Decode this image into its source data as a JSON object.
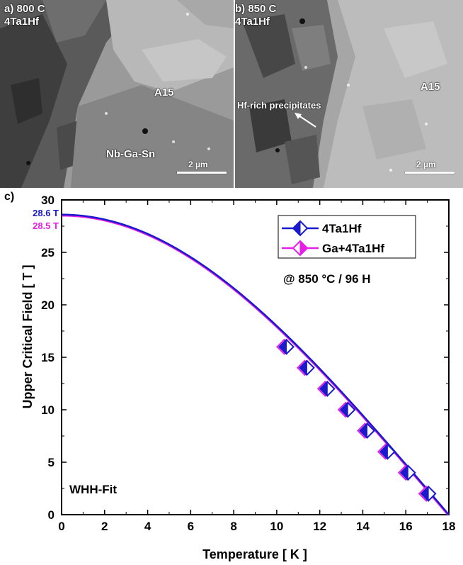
{
  "panel_a": {
    "tag": "a)",
    "temperature": "800 C",
    "alloy": "4Ta1Hf",
    "phase_label": "A15",
    "matrix_label": "Nb-Ga-Sn",
    "scale_label": "2 µm"
  },
  "panel_b": {
    "tag": "b)",
    "temperature": "850 C",
    "alloy": "4Ta1Hf",
    "phase_label": "A15",
    "precipitate_label": "Hf-rich precipitates",
    "scale_label": "2 µm"
  },
  "chart_data": {
    "type": "line",
    "panel_tag": "c)",
    "xlabel": "Temperature [ K ]",
    "ylabel": "Upper Critical Field [ T ]",
    "xlim": [
      0,
      18
    ],
    "ylim": [
      0,
      30
    ],
    "xticks": [
      0,
      2,
      4,
      6,
      8,
      10,
      12,
      14,
      16,
      18
    ],
    "yticks": [
      0,
      5,
      10,
      15,
      20,
      25,
      30
    ],
    "grid": false,
    "legend_position": "top-right",
    "annotation": "@ 850 °C / 96 H",
    "fit_label": "WHH-Fit",
    "series": [
      {
        "name": "4Ta1Hf",
        "color": "#1a1acc",
        "marker": "diamond-half-left",
        "hc2_zero_label": "28.6 T",
        "fit": {
          "bc2_0": 28.6,
          "tc": 18.0
        },
        "points": [
          [
            10.45,
            16
          ],
          [
            11.4,
            14
          ],
          [
            12.35,
            12
          ],
          [
            13.3,
            10
          ],
          [
            14.2,
            8
          ],
          [
            15.15,
            6
          ],
          [
            16.1,
            4
          ],
          [
            17.05,
            2
          ]
        ]
      },
      {
        "name": "Ga+4Ta1Hf",
        "color": "#e61ee6",
        "marker": "diamond-half-right",
        "hc2_zero_label": "28.5 T",
        "fit": {
          "bc2_0": 28.5,
          "tc": 17.95
        },
        "points": [
          [
            10.35,
            16
          ],
          [
            11.3,
            14
          ],
          [
            12.25,
            12
          ],
          [
            13.2,
            10
          ],
          [
            14.1,
            8
          ],
          [
            15.05,
            6
          ],
          [
            16.0,
            4
          ],
          [
            16.95,
            2
          ]
        ]
      }
    ]
  }
}
